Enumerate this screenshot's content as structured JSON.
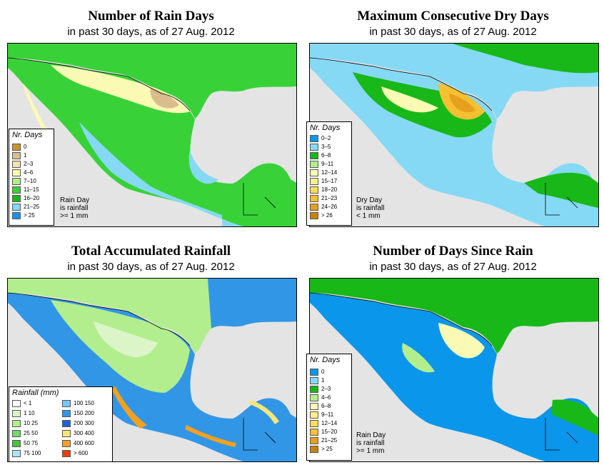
{
  "panels": [
    {
      "title": "Number of Rain Days",
      "subtitle": "in past 30 days, as of  27 Aug. 2012",
      "legend_title": "Nr. Days",
      "legend_items": [
        {
          "label": "0",
          "color": "#c8962a"
        },
        {
          "label": "1",
          "color": "#d9bd8c"
        },
        {
          "label": "2–3",
          "color": "#f2e2b4"
        },
        {
          "label": "4–6",
          "color": "#fafab4"
        },
        {
          "label": "7–10",
          "color": "#b2ee8e"
        },
        {
          "label": "11–15",
          "color": "#38d238"
        },
        {
          "label": "16–20",
          "color": "#18b818"
        },
        {
          "label": "21–25",
          "color": "#86d9f5"
        },
        {
          "label": "> 25",
          "color": "#1e90e6"
        }
      ],
      "note": [
        "Rain Day",
        "is rainfall",
        ">= 1 mm"
      ]
    },
    {
      "title": "Maximum Consecutive Dry Days",
      "subtitle": "in past 30 days, as of  27 Aug. 2012",
      "legend_title": "Nr. Days",
      "legend_items": [
        {
          "label": "0–2",
          "color": "#0a96ea"
        },
        {
          "label": "3–5",
          "color": "#86d9f5"
        },
        {
          "label": "6–8",
          "color": "#18b818"
        },
        {
          "label": "9–11",
          "color": "#b2ee8e"
        },
        {
          "label": "12–14",
          "color": "#fafab4"
        },
        {
          "label": "15–17",
          "color": "#fbf08c"
        },
        {
          "label": "18–20",
          "color": "#fade5a"
        },
        {
          "label": "21–23",
          "color": "#f5c032"
        },
        {
          "label": "24–26",
          "color": "#e6a01e"
        },
        {
          "label": "> 26",
          "color": "#c8820a"
        }
      ],
      "note": [
        "Dry Day",
        "is rainfall",
        "< 1 mm"
      ]
    },
    {
      "title": "Total Accumulated Rainfall",
      "subtitle": "in past 30 days, as of  27 Aug. 2012",
      "legend_title": "Rainfall (mm)",
      "legend_items": [
        {
          "label": "< 1",
          "color": "#ffffff"
        },
        {
          "label": "1    10",
          "color": "#dcf5c8"
        },
        {
          "label": "10    25",
          "color": "#b2ee8e"
        },
        {
          "label": "25    50",
          "color": "#78d86e"
        },
        {
          "label": "50    75",
          "color": "#46c346"
        },
        {
          "label": "75   100",
          "color": "#aae6fa"
        },
        {
          "label": "100   150",
          "color": "#78c8f5"
        },
        {
          "label": "150   200",
          "color": "#3296e6"
        },
        {
          "label": "200   300",
          "color": "#1e64d2"
        },
        {
          "label": "300   400",
          "color": "#fae678"
        },
        {
          "label": "400   600",
          "color": "#f5a01e"
        },
        {
          "label": "> 600",
          "color": "#f03c0a"
        }
      ],
      "note": []
    },
    {
      "title": "Number of Days Since Rain",
      "subtitle": "in past 30 days, as of  27 Aug. 2012",
      "legend_title": "Nr. Days",
      "legend_items": [
        {
          "label": "0",
          "color": "#0a96ea"
        },
        {
          "label": "1",
          "color": "#86d9f5"
        },
        {
          "label": "2–3",
          "color": "#18b818"
        },
        {
          "label": "4–6",
          "color": "#b2ee8e"
        },
        {
          "label": "6–8",
          "color": "#fafab4"
        },
        {
          "label": "9–11",
          "color": "#fbf08c"
        },
        {
          "label": "12–14",
          "color": "#fade5a"
        },
        {
          "label": "15–20",
          "color": "#f5c032"
        },
        {
          "label": "21–25",
          "color": "#e6a01e"
        },
        {
          "label": "> 25",
          "color": "#c8820a"
        }
      ],
      "note": [
        "Rain Day",
        "is rainfall",
        ">= 1 mm"
      ]
    }
  ],
  "colors": {
    "ocean": "#e4e4e4",
    "land_p1_main": "#38d238",
    "land_p1_dry": "#fafab4",
    "land_p1_wet": "#86d9f5",
    "land_p2_main": "#86d9f5",
    "land_p2_mid": "#18b818",
    "land_p2_dry": "#f5c032",
    "land_p3_main": "#b2ee8e",
    "land_p3_wet": "#3296e6",
    "land_p3_hot": "#f5a01e",
    "land_p4_main": "#0a96ea",
    "land_p4_north": "#18b818",
    "land_p4_dry": "#fafab4"
  }
}
